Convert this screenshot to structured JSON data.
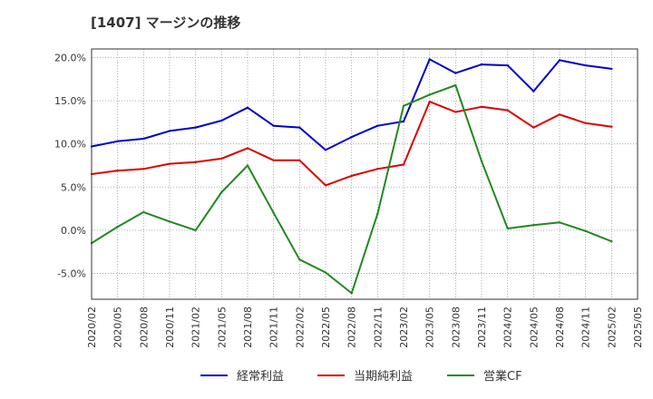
{
  "chart_data": {
    "type": "line",
    "title": "[1407]  マージンの推移",
    "xlabel": "",
    "ylabel": "",
    "ylim": [
      -8,
      21
    ],
    "yticks": [
      -5,
      0,
      5,
      10,
      15,
      20
    ],
    "ytick_labels": [
      "-5.0%",
      "0.0%",
      "5.0%",
      "10.0%",
      "15.0%",
      "20.0%"
    ],
    "grid": true,
    "legend_position": "bottom",
    "x": [
      "2020/02",
      "2020/05",
      "2020/08",
      "2020/11",
      "2021/02",
      "2021/05",
      "2021/08",
      "2021/11",
      "2022/02",
      "2022/05",
      "2022/08",
      "2022/11",
      "2023/02",
      "2023/05",
      "2023/08",
      "2023/11",
      "2024/02",
      "2024/05",
      "2024/08",
      "2024/11",
      "2025/02",
      "2025/05"
    ],
    "series": [
      {
        "name": "経常利益",
        "color": "#0000cc",
        "values": [
          9.7,
          10.3,
          10.6,
          11.5,
          11.9,
          12.7,
          14.2,
          12.1,
          11.9,
          9.3,
          10.8,
          12.1,
          12.6,
          19.8,
          18.2,
          19.2,
          19.1,
          16.1,
          19.7,
          19.1,
          18.7,
          null
        ]
      },
      {
        "name": "当期純利益",
        "color": "#dd0000",
        "values": [
          6.5,
          6.9,
          7.1,
          7.7,
          7.9,
          8.3,
          9.5,
          8.1,
          8.1,
          5.2,
          6.3,
          7.1,
          7.6,
          14.9,
          13.7,
          14.3,
          13.9,
          11.9,
          13.4,
          12.4,
          12.0,
          null
        ]
      },
      {
        "name": "営業CF",
        "color": "#228822",
        "values": [
          -1.5,
          0.4,
          2.1,
          1.0,
          0.0,
          4.4,
          7.5,
          2.0,
          -3.4,
          -4.9,
          -7.3,
          1.9,
          14.4,
          15.7,
          16.8,
          8.0,
          0.2,
          0.6,
          0.9,
          -0.1,
          -1.3,
          null
        ]
      }
    ]
  }
}
